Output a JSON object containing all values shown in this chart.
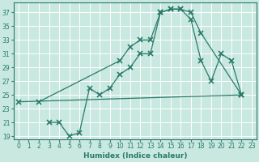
{
  "xlabel": "Humidex (Indice chaleur)",
  "xlim": [
    -0.5,
    23.5
  ],
  "ylim": [
    18.5,
    38.5
  ],
  "yticks": [
    19,
    21,
    23,
    25,
    27,
    29,
    31,
    33,
    35,
    37
  ],
  "xticks": [
    0,
    1,
    2,
    3,
    4,
    5,
    6,
    7,
    8,
    9,
    10,
    11,
    12,
    13,
    14,
    15,
    16,
    17,
    18,
    19,
    20,
    21,
    22,
    23
  ],
  "bg_color": "#c8e8e0",
  "line_color": "#2a7a6a",
  "lines": [
    {
      "x": [
        2,
        10,
        11,
        12,
        13,
        14,
        15,
        16,
        17,
        18,
        22
      ],
      "y": [
        24,
        30,
        32,
        33,
        33,
        37,
        37.5,
        37.5,
        37,
        34,
        25
      ]
    },
    {
      "x": [
        0,
        22
      ],
      "y": [
        24,
        25
      ]
    },
    {
      "x": [
        3,
        4,
        5,
        6,
        7,
        8,
        9,
        10,
        11,
        12,
        13,
        14,
        15,
        16,
        17,
        18,
        19,
        20,
        21,
        22
      ],
      "y": [
        21,
        21,
        19,
        19.5,
        26,
        25,
        26,
        28,
        29,
        31,
        31,
        37,
        37.5,
        37.5,
        36,
        30,
        27,
        31,
        30,
        25
      ]
    }
  ]
}
